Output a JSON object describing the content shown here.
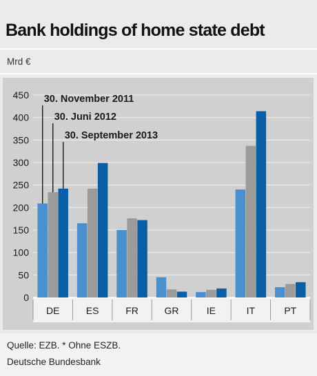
{
  "header": {
    "title": "Bank holdings of home state debt",
    "unit": "Mrd €"
  },
  "footer": {
    "source": "Quelle: EZB. * Ohne ESZB.",
    "publisher": "Deutsche Bundesbank"
  },
  "chart_data": {
    "type": "bar",
    "title": "Bank holdings of home state debt",
    "ylabel": "Mrd €",
    "xlabel": "",
    "ylim": [
      0,
      450
    ],
    "yticks": [
      0,
      50,
      100,
      150,
      200,
      250,
      300,
      350,
      400,
      450
    ],
    "grid": true,
    "legend_position": "top-left, annotations pointing to DE bars",
    "categories": [
      "DE",
      "ES",
      "FR",
      "GR",
      "IE",
      "IT",
      "PT"
    ],
    "series": [
      {
        "name": "30. November 2011",
        "color": "#4a8fce",
        "values": [
          209,
          165,
          150,
          45,
          12,
          240,
          23
        ]
      },
      {
        "name": "30. Juni 2012",
        "color": "#9b9b9b",
        "values": [
          234,
          242,
          176,
          18,
          17,
          337,
          30
        ]
      },
      {
        "name": "30. September 2013",
        "color": "#0a5ea6",
        "values": [
          242,
          299,
          172,
          13,
          20,
          414,
          34
        ]
      }
    ]
  }
}
